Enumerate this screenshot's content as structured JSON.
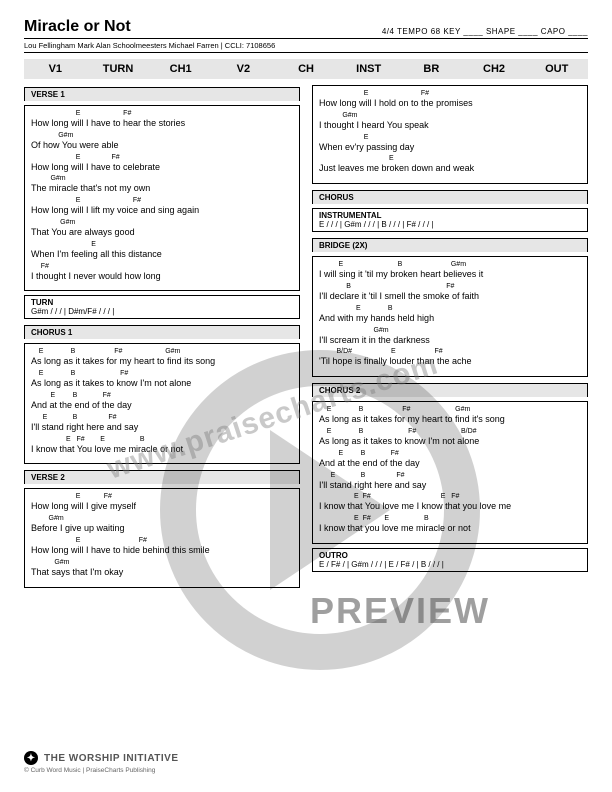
{
  "header": {
    "title": "Miracle or Not",
    "meta": "4/4  TEMPO  68   KEY ____   SHAPE ____   CAPO ____",
    "credits": "Lou Fellingham Mark Alan Schoolmeesters Michael Farren | CCLI: 7108656"
  },
  "nav": [
    "V1",
    "TURN",
    "CH1",
    "V2",
    "CH",
    "INST",
    "BR",
    "CH2",
    "OUT"
  ],
  "verse1": {
    "label": "VERSE 1",
    "lines": [
      {
        "c": "                       E                      F#",
        "l": "How long will I have to hear the stories"
      },
      {
        "c": "              G#m",
        "l": "Of how You were able"
      },
      {
        "c": "                       E                F#",
        "l": "How long will I have to celebrate"
      },
      {
        "c": "          G#m",
        "l": "The miracle that's not my own"
      },
      {
        "c": "                       E                           F#",
        "l": "How long will I lift my voice and sing again"
      },
      {
        "c": "               G#m",
        "l": "That You are always good"
      },
      {
        "c": "                               E",
        "l": "When I'm feeling all this distance"
      },
      {
        "c": "     F#",
        "l": "I thought I never would how long"
      }
    ]
  },
  "turn": {
    "label": "TURN",
    "seq": "G#m / / /  | D#m/F# / / /  |"
  },
  "chorus1": {
    "label": "CHORUS 1",
    "lines": [
      {
        "c": "    E              B                    F#                      G#m",
        "l": "As long as it takes for my heart to find its song"
      },
      {
        "c": "    E              B                       F#",
        "l": "As long as it takes to know I'm not alone"
      },
      {
        "c": "          E         B             F#",
        "l": "And at the end of the day"
      },
      {
        "c": "      E             B                F#",
        "l": "I'll stand right here and say"
      },
      {
        "c": "                  E   F#        E                  B",
        "l": "I know that You love me miracle or not"
      }
    ]
  },
  "verse2": {
    "label": "VERSE 2",
    "lines": [
      {
        "c": "                       E            F#",
        "l": "How long will I give myself"
      },
      {
        "c": "         G#m",
        "l": "Before I give up waiting"
      },
      {
        "c": "                       E                              F#",
        "l": "How long will I have to hide behind this smile"
      },
      {
        "c": "            G#m",
        "l": "That says that I'm okay"
      }
    ]
  },
  "verse2b": {
    "lines": [
      {
        "c": "                       E                           F#",
        "l": "How long will I hold on to the promises"
      },
      {
        "c": "            G#m",
        "l": "I thought I heard You speak"
      },
      {
        "c": "                       E",
        "l": "When ev'ry passing day"
      },
      {
        "c": "                                    E",
        "l": "Just leaves me broken down and weak"
      }
    ]
  },
  "chorus_label": "CHORUS",
  "instrumental": {
    "label": "INSTRUMENTAL",
    "seq": "E / / /  | G#m / / /  | B / / /  | F# / / /  |"
  },
  "bridge": {
    "label": "BRIDGE (2X)",
    "lines": [
      {
        "c": "          E                            B                         G#m",
        "l": "I will sing it 'til my broken heart believes it"
      },
      {
        "c": "              B                                                 F#",
        "l": "I'll declare it 'til I smell the smoke of faith"
      },
      {
        "c": "                   E              B",
        "l": "And with my hands held high"
      },
      {
        "c": "                            G#m",
        "l": "I'll scream it in the darkness"
      },
      {
        "c": "         B/D#                    E                    F#",
        "l": "'Til hope is finally louder than the ache"
      }
    ]
  },
  "chorus2": {
    "label": "CHORUS 2",
    "lines": [
      {
        "c": "    E              B                    F#                       G#m",
        "l": "As long as it takes for my heart to find it's song"
      },
      {
        "c": "    E              B                       F#                       B/D#",
        "l": "As long as it takes to know I'm not alone"
      },
      {
        "c": "          E         B             F#",
        "l": "And at the end of the day"
      },
      {
        "c": "      E             B                F#",
        "l": "I'll stand right here and say"
      },
      {
        "c": "                  E  F#                                    E   F#",
        "l": "I know that You love me I know that you love me"
      },
      {
        "c": "                  E  F#       E                  B",
        "l": "I know that you love me miracle or not"
      }
    ]
  },
  "outro": {
    "label": "OUTRO",
    "seq": "E / F# /  | G#m / / /  | E / F# /  | B / / /  |"
  },
  "footer": {
    "brand": "THE WORSHIP INITIATIVE",
    "copy": "© Curb Word Music | PraiseCharts Publishing"
  },
  "watermark": {
    "url": "www.praisecharts.com",
    "preview": "PREVIEW"
  }
}
